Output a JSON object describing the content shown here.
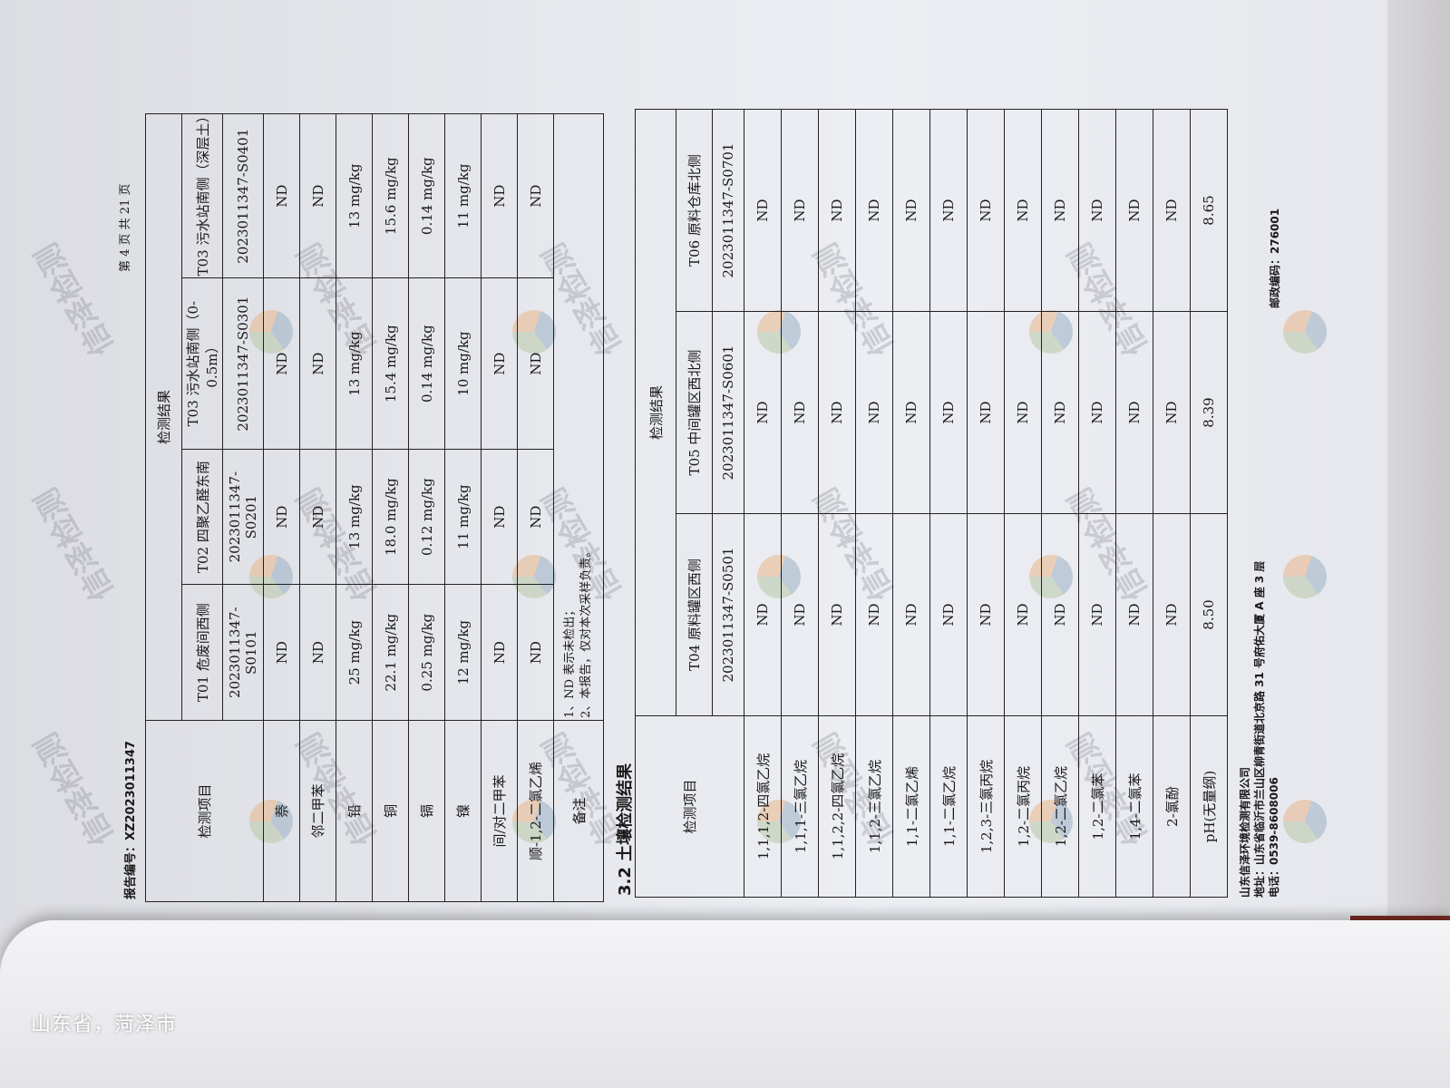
{
  "caption": "山东省，菏泽市",
  "report": {
    "number_label": "报告编号：XZ2023011347",
    "page": "第 4 页  共 21 页"
  },
  "watermark": "信泽检测",
  "table1": {
    "item_header": "检测项目",
    "result_header": "检测结果",
    "columns": [
      {
        "name": "T01 危废间西侧",
        "code": "2023011347-S0101"
      },
      {
        "name": "T02 四聚乙醛东南",
        "code": "2023011347-S0201"
      },
      {
        "name": "T03 污水站南侧（0-0.5m）",
        "code": "2023011347-S0301"
      },
      {
        "name": "T03 污水站南侧（深层土）",
        "code": "2023011347-S0401"
      }
    ],
    "rows": [
      {
        "item": "萘",
        "values": [
          "ND",
          "ND",
          "ND",
          "ND"
        ]
      },
      {
        "item": "邻二甲苯",
        "values": [
          "ND",
          "ND",
          "ND",
          "ND"
        ]
      },
      {
        "item": "铅",
        "values": [
          "25 mg/kg",
          "13 mg/kg",
          "13 mg/kg",
          "13 mg/kg"
        ]
      },
      {
        "item": "铜",
        "values": [
          "22.1 mg/kg",
          "18.0 mg/kg",
          "15.4 mg/kg",
          "15.6 mg/kg"
        ]
      },
      {
        "item": "镉",
        "values": [
          "0.25 mg/kg",
          "0.12 mg/kg",
          "0.14 mg/kg",
          "0.14 mg/kg"
        ]
      },
      {
        "item": "镍",
        "values": [
          "12 mg/kg",
          "11 mg/kg",
          "10 mg/kg",
          "11 mg/kg"
        ]
      },
      {
        "item": "间/对二甲苯",
        "values": [
          "ND",
          "ND",
          "ND",
          "ND"
        ]
      },
      {
        "item": "顺-1,2-二氯乙烯",
        "values": [
          "ND",
          "ND",
          "ND",
          "ND"
        ]
      }
    ],
    "remarks_label": "备注",
    "remarks": [
      "1、ND 表示未检出；",
      "2、本报告，仅对本次采样负责。"
    ]
  },
  "section_title": "3.2 土壤检测结果",
  "table2": {
    "item_header": "检测项目",
    "result_header": "检测结果",
    "columns": [
      {
        "name": "T04 原料罐区西侧",
        "code": "2023011347-S0501"
      },
      {
        "name": "T05 中间罐区西北侧",
        "code": "2023011347-S0601"
      },
      {
        "name": "T06 原料仓库北侧",
        "code": "2023011347-S0701"
      }
    ],
    "rows": [
      {
        "item": "1,1,1,2-四氯乙烷",
        "values": [
          "ND",
          "ND",
          "ND"
        ]
      },
      {
        "item": "1,1,1-三氯乙烷",
        "values": [
          "ND",
          "ND",
          "ND"
        ]
      },
      {
        "item": "1,1,2,2-四氯乙烷",
        "values": [
          "ND",
          "ND",
          "ND"
        ]
      },
      {
        "item": "1,1,2-三氯乙烷",
        "values": [
          "ND",
          "ND",
          "ND"
        ]
      },
      {
        "item": "1,1-二氯乙烯",
        "values": [
          "ND",
          "ND",
          "ND"
        ]
      },
      {
        "item": "1,1-二氯乙烷",
        "values": [
          "ND",
          "ND",
          "ND"
        ]
      },
      {
        "item": "1,2,3-三氯丙烷",
        "values": [
          "ND",
          "ND",
          "ND"
        ]
      },
      {
        "item": "1,2-二氯丙烷",
        "values": [
          "ND",
          "ND",
          "ND"
        ]
      },
      {
        "item": "1,2-二氯乙烷",
        "values": [
          "ND",
          "ND",
          "ND"
        ]
      },
      {
        "item": "1,2-二氯苯",
        "values": [
          "ND",
          "ND",
          "ND"
        ]
      },
      {
        "item": "1,4-二氯苯",
        "values": [
          "ND",
          "ND",
          "ND"
        ]
      },
      {
        "item": "2-氯酚",
        "values": [
          "ND",
          "ND",
          "ND"
        ]
      },
      {
        "item": "pH(无量纲)",
        "values": [
          "8.50",
          "8.39",
          "8.65"
        ]
      }
    ]
  },
  "footer": {
    "company": "山东信泽环境检测有限公司",
    "address": "地址：山东省临沂市兰山区柳青街道北京路 31 号府佑大厦 A 座 3 层",
    "phone": "电话：0539-8608006",
    "postal": "邮政编码：276001"
  }
}
